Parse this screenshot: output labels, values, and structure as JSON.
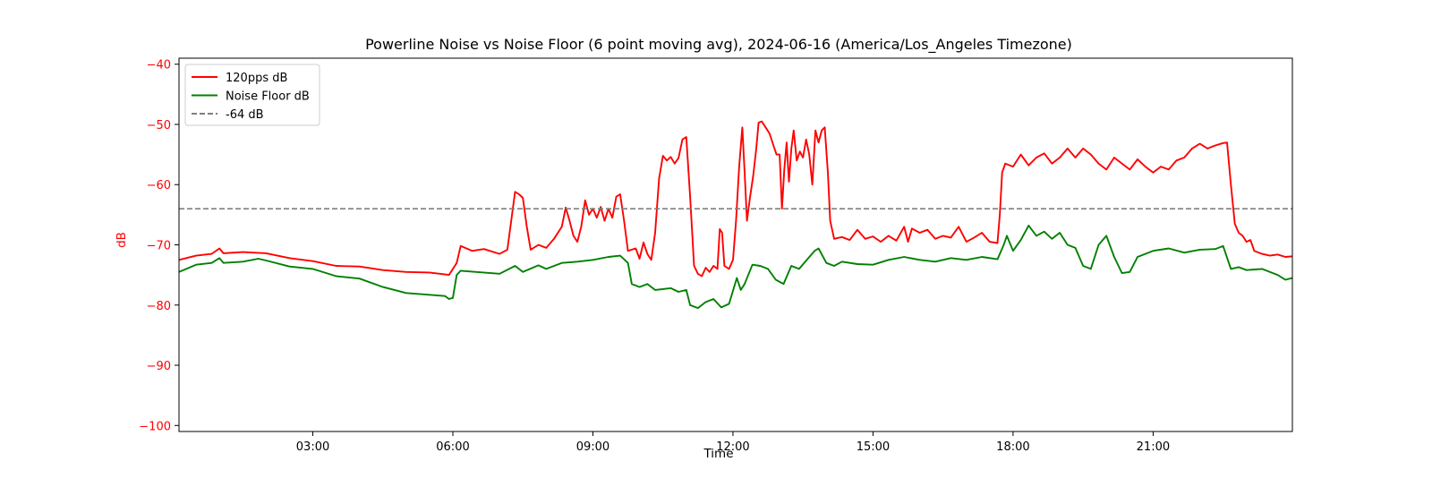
{
  "chart_data": {
    "type": "line",
    "title": "Powerline Noise vs Noise Floor (6 point moving avg), 2024-06-16 (America/Los_Angeles Timezone)",
    "xlabel": "Time",
    "ylabel": "dB",
    "x_range": [
      "00:08",
      "23:59"
    ],
    "ylim": [
      -101,
      -39
    ],
    "x_ticks": [
      "03:00",
      "06:00",
      "09:00",
      "12:00",
      "15:00",
      "18:00",
      "21:00"
    ],
    "y_ticks": [
      -40,
      -50,
      -60,
      -70,
      -80,
      -90,
      -100
    ],
    "grid": false,
    "legend_position": "upper left",
    "colors": {
      "ylabel": "#ff0000",
      "ytick": "#ff0000"
    },
    "series": [
      {
        "name": "120pps dB",
        "color": "#ff0000",
        "style": "solid",
        "points": [
          [
            "00:08",
            -72.5
          ],
          [
            "00:30",
            -71.8
          ],
          [
            "00:50",
            -71.5
          ],
          [
            "01:00",
            -70.6
          ],
          [
            "01:05",
            -71.4
          ],
          [
            "01:30",
            -71.2
          ],
          [
            "02:00",
            -71.4
          ],
          [
            "02:30",
            -72.2
          ],
          [
            "03:00",
            -72.7
          ],
          [
            "03:30",
            -73.5
          ],
          [
            "04:00",
            -73.6
          ],
          [
            "04:30",
            -74.2
          ],
          [
            "05:00",
            -74.5
          ],
          [
            "05:30",
            -74.6
          ],
          [
            "05:55",
            -75.0
          ],
          [
            "06:05",
            -73.0
          ],
          [
            "06:10",
            -70.2
          ],
          [
            "06:25",
            -71.0
          ],
          [
            "06:40",
            -70.7
          ],
          [
            "07:00",
            -71.5
          ],
          [
            "07:10",
            -70.8
          ],
          [
            "07:15",
            -66.0
          ],
          [
            "07:20",
            -61.2
          ],
          [
            "07:25",
            -61.6
          ],
          [
            "07:30",
            -62.2
          ],
          [
            "07:35",
            -67.0
          ],
          [
            "07:40",
            -70.8
          ],
          [
            "07:50",
            -70.0
          ],
          [
            "08:00",
            -70.5
          ],
          [
            "08:10",
            -69.0
          ],
          [
            "08:20",
            -67.0
          ],
          [
            "08:25",
            -63.8
          ],
          [
            "08:30",
            -66.0
          ],
          [
            "08:35",
            -68.5
          ],
          [
            "08:40",
            -69.5
          ],
          [
            "08:45",
            -67.0
          ],
          [
            "08:50",
            -62.6
          ],
          [
            "08:55",
            -65.0
          ],
          [
            "09:00",
            -64.0
          ],
          [
            "09:05",
            -65.5
          ],
          [
            "09:10",
            -63.7
          ],
          [
            "09:15",
            -66.0
          ],
          [
            "09:20",
            -64.0
          ],
          [
            "09:25",
            -65.5
          ],
          [
            "09:30",
            -62.0
          ],
          [
            "09:35",
            -61.6
          ],
          [
            "09:40",
            -66.0
          ],
          [
            "09:45",
            -71.0
          ],
          [
            "09:55",
            -70.6
          ],
          [
            "10:00",
            -72.3
          ],
          [
            "10:05",
            -69.6
          ],
          [
            "10:10",
            -71.5
          ],
          [
            "10:15",
            -72.5
          ],
          [
            "10:20",
            -68.0
          ],
          [
            "10:25",
            -59.0
          ],
          [
            "10:30",
            -55.2
          ],
          [
            "10:35",
            -56.0
          ],
          [
            "10:40",
            -55.4
          ],
          [
            "10:45",
            -56.5
          ],
          [
            "10:50",
            -55.6
          ],
          [
            "10:55",
            -52.5
          ],
          [
            "11:00",
            -52.1
          ],
          [
            "11:05",
            -62.0
          ],
          [
            "11:10",
            -73.5
          ],
          [
            "11:15",
            -74.8
          ],
          [
            "11:20",
            -75.2
          ],
          [
            "11:25",
            -73.8
          ],
          [
            "11:30",
            -74.5
          ],
          [
            "11:35",
            -73.5
          ],
          [
            "11:40",
            -74.0
          ],
          [
            "11:43",
            -67.4
          ],
          [
            "11:46",
            -68.0
          ],
          [
            "11:49",
            -73.5
          ],
          [
            "11:55",
            -74.0
          ],
          [
            "12:00",
            -72.5
          ],
          [
            "12:04",
            -66.0
          ],
          [
            "12:08",
            -57.0
          ],
          [
            "12:12",
            -50.5
          ],
          [
            "12:15",
            -58.0
          ],
          [
            "12:18",
            -66.0
          ],
          [
            "12:22",
            -62.0
          ],
          [
            "12:26",
            -58.5
          ],
          [
            "12:30",
            -54.0
          ],
          [
            "12:33",
            -49.7
          ],
          [
            "12:37",
            -49.5
          ],
          [
            "12:42",
            -50.5
          ],
          [
            "12:47",
            -51.5
          ],
          [
            "12:52",
            -53.5
          ],
          [
            "12:56",
            -55.0
          ],
          [
            "13:00",
            -55.0
          ],
          [
            "13:03",
            -64.0
          ],
          [
            "13:06",
            -57.5
          ],
          [
            "13:09",
            -53.0
          ],
          [
            "13:12",
            -59.5
          ],
          [
            "13:15",
            -54.0
          ],
          [
            "13:18",
            -51.0
          ],
          [
            "13:22",
            -56.0
          ],
          [
            "13:26",
            -54.5
          ],
          [
            "13:30",
            -55.5
          ],
          [
            "13:34",
            -52.5
          ],
          [
            "13:38",
            -55.0
          ],
          [
            "13:42",
            -60.0
          ],
          [
            "13:46",
            -51.0
          ],
          [
            "13:50",
            -53.0
          ],
          [
            "13:54",
            -51.0
          ],
          [
            "13:58",
            -50.5
          ],
          [
            "14:02",
            -58.0
          ],
          [
            "14:05",
            -66.0
          ],
          [
            "14:10",
            -69.0
          ],
          [
            "14:20",
            -68.7
          ],
          [
            "14:30",
            -69.2
          ],
          [
            "14:40",
            -67.5
          ],
          [
            "14:50",
            -69.0
          ],
          [
            "15:00",
            -68.6
          ],
          [
            "15:10",
            -69.5
          ],
          [
            "15:20",
            -68.5
          ],
          [
            "15:30",
            -69.3
          ],
          [
            "15:40",
            -67.0
          ],
          [
            "15:45",
            -69.5
          ],
          [
            "15:50",
            -67.3
          ],
          [
            "16:00",
            -68.0
          ],
          [
            "16:10",
            -67.5
          ],
          [
            "16:20",
            -69.0
          ],
          [
            "16:30",
            -68.5
          ],
          [
            "16:40",
            -68.8
          ],
          [
            "16:50",
            -67.0
          ],
          [
            "17:00",
            -69.5
          ],
          [
            "17:10",
            -68.8
          ],
          [
            "17:20",
            -68.0
          ],
          [
            "17:30",
            -69.5
          ],
          [
            "17:40",
            -69.7
          ],
          [
            "17:43",
            -65.0
          ],
          [
            "17:46",
            -58.0
          ],
          [
            "17:50",
            -56.5
          ],
          [
            "18:00",
            -57.0
          ],
          [
            "18:10",
            -55.0
          ],
          [
            "18:20",
            -56.8
          ],
          [
            "18:30",
            -55.5
          ],
          [
            "18:40",
            -54.8
          ],
          [
            "18:50",
            -56.5
          ],
          [
            "19:00",
            -55.5
          ],
          [
            "19:10",
            -54.0
          ],
          [
            "19:20",
            -55.5
          ],
          [
            "19:30",
            -54.0
          ],
          [
            "19:40",
            -55.0
          ],
          [
            "19:50",
            -56.5
          ],
          [
            "20:00",
            -57.5
          ],
          [
            "20:10",
            -55.5
          ],
          [
            "20:20",
            -56.5
          ],
          [
            "20:30",
            -57.5
          ],
          [
            "20:40",
            -55.8
          ],
          [
            "20:50",
            -57.0
          ],
          [
            "21:00",
            -58.0
          ],
          [
            "21:10",
            -57.0
          ],
          [
            "21:20",
            -57.5
          ],
          [
            "21:30",
            -56.0
          ],
          [
            "21:40",
            -55.5
          ],
          [
            "21:50",
            -54.0
          ],
          [
            "22:00",
            -53.2
          ],
          [
            "22:10",
            -54.0
          ],
          [
            "22:20",
            -53.5
          ],
          [
            "22:30",
            -53.1
          ],
          [
            "22:35",
            -53.0
          ],
          [
            "22:40",
            -60.0
          ],
          [
            "22:45",
            -66.5
          ],
          [
            "22:50",
            -68.0
          ],
          [
            "22:55",
            -68.5
          ],
          [
            "23:00",
            -69.5
          ],
          [
            "23:05",
            -69.2
          ],
          [
            "23:10",
            -71.0
          ],
          [
            "23:20",
            -71.5
          ],
          [
            "23:30",
            -71.8
          ],
          [
            "23:40",
            -71.6
          ],
          [
            "23:50",
            -72.0
          ],
          [
            "23:59",
            -71.9
          ]
        ]
      },
      {
        "name": "Noise Floor dB",
        "color": "#008000",
        "style": "solid",
        "points": [
          [
            "00:08",
            -74.5
          ],
          [
            "00:30",
            -73.3
          ],
          [
            "00:50",
            -73.0
          ],
          [
            "01:00",
            -72.2
          ],
          [
            "01:05",
            -73.0
          ],
          [
            "01:30",
            -72.8
          ],
          [
            "01:50",
            -72.3
          ],
          [
            "02:00",
            -72.6
          ],
          [
            "02:30",
            -73.6
          ],
          [
            "03:00",
            -74.0
          ],
          [
            "03:30",
            -75.2
          ],
          [
            "04:00",
            -75.6
          ],
          [
            "04:30",
            -77.0
          ],
          [
            "05:00",
            -78.0
          ],
          [
            "05:30",
            -78.3
          ],
          [
            "05:50",
            -78.5
          ],
          [
            "05:55",
            -79.0
          ],
          [
            "06:00",
            -78.8
          ],
          [
            "06:05",
            -75.0
          ],
          [
            "06:10",
            -74.3
          ],
          [
            "06:30",
            -74.5
          ],
          [
            "07:00",
            -74.8
          ],
          [
            "07:20",
            -73.5
          ],
          [
            "07:30",
            -74.5
          ],
          [
            "07:50",
            -73.4
          ],
          [
            "08:00",
            -74.0
          ],
          [
            "08:20",
            -73.0
          ],
          [
            "08:40",
            -72.8
          ],
          [
            "09:00",
            -72.5
          ],
          [
            "09:20",
            -72.0
          ],
          [
            "09:35",
            -71.8
          ],
          [
            "09:45",
            -73.0
          ],
          [
            "09:50",
            -76.5
          ],
          [
            "10:00",
            -77.0
          ],
          [
            "10:10",
            -76.5
          ],
          [
            "10:20",
            -77.5
          ],
          [
            "10:40",
            -77.2
          ],
          [
            "10:50",
            -77.8
          ],
          [
            "11:00",
            -77.5
          ],
          [
            "11:05",
            -80.0
          ],
          [
            "11:15",
            -80.5
          ],
          [
            "11:25",
            -79.5
          ],
          [
            "11:35",
            -79.0
          ],
          [
            "11:45",
            -80.4
          ],
          [
            "11:55",
            -79.8
          ],
          [
            "12:05",
            -75.5
          ],
          [
            "12:10",
            -77.5
          ],
          [
            "12:15",
            -76.5
          ],
          [
            "12:25",
            -73.3
          ],
          [
            "12:35",
            -73.5
          ],
          [
            "12:45",
            -74.0
          ],
          [
            "12:55",
            -75.8
          ],
          [
            "13:05",
            -76.5
          ],
          [
            "13:10",
            -75.0
          ],
          [
            "13:15",
            -73.5
          ],
          [
            "13:25",
            -74.0
          ],
          [
            "13:35",
            -72.5
          ],
          [
            "13:45",
            -71.0
          ],
          [
            "13:50",
            -70.6
          ],
          [
            "14:00",
            -73.0
          ],
          [
            "14:10",
            -73.5
          ],
          [
            "14:20",
            -72.8
          ],
          [
            "14:40",
            -73.2
          ],
          [
            "15:00",
            -73.3
          ],
          [
            "15:20",
            -72.5
          ],
          [
            "15:40",
            -72.0
          ],
          [
            "16:00",
            -72.5
          ],
          [
            "16:20",
            -72.8
          ],
          [
            "16:40",
            -72.2
          ],
          [
            "17:00",
            -72.5
          ],
          [
            "17:20",
            -72.0
          ],
          [
            "17:40",
            -72.4
          ],
          [
            "17:48",
            -70.0
          ],
          [
            "17:52",
            -68.5
          ],
          [
            "18:00",
            -71.0
          ],
          [
            "18:10",
            -69.2
          ],
          [
            "18:20",
            -66.8
          ],
          [
            "18:30",
            -68.5
          ],
          [
            "18:40",
            -67.8
          ],
          [
            "18:50",
            -69.0
          ],
          [
            "19:00",
            -68.0
          ],
          [
            "19:10",
            -70.0
          ],
          [
            "19:20",
            -70.5
          ],
          [
            "19:30",
            -73.5
          ],
          [
            "19:40",
            -74.0
          ],
          [
            "19:50",
            -70.0
          ],
          [
            "20:00",
            -68.5
          ],
          [
            "20:10",
            -72.0
          ],
          [
            "20:20",
            -74.7
          ],
          [
            "20:30",
            -74.5
          ],
          [
            "20:40",
            -72.0
          ],
          [
            "20:50",
            -71.5
          ],
          [
            "21:00",
            -71.0
          ],
          [
            "21:20",
            -70.6
          ],
          [
            "21:40",
            -71.3
          ],
          [
            "22:00",
            -70.8
          ],
          [
            "22:20",
            -70.7
          ],
          [
            "22:30",
            -70.2
          ],
          [
            "22:40",
            -74.0
          ],
          [
            "22:50",
            -73.7
          ],
          [
            "23:00",
            -74.2
          ],
          [
            "23:20",
            -74.0
          ],
          [
            "23:40",
            -75.0
          ],
          [
            "23:50",
            -75.8
          ],
          [
            "23:59",
            -75.5
          ]
        ]
      },
      {
        "name": "-64 dB",
        "color": "#808080",
        "style": "dashed",
        "constant": -64
      }
    ]
  }
}
